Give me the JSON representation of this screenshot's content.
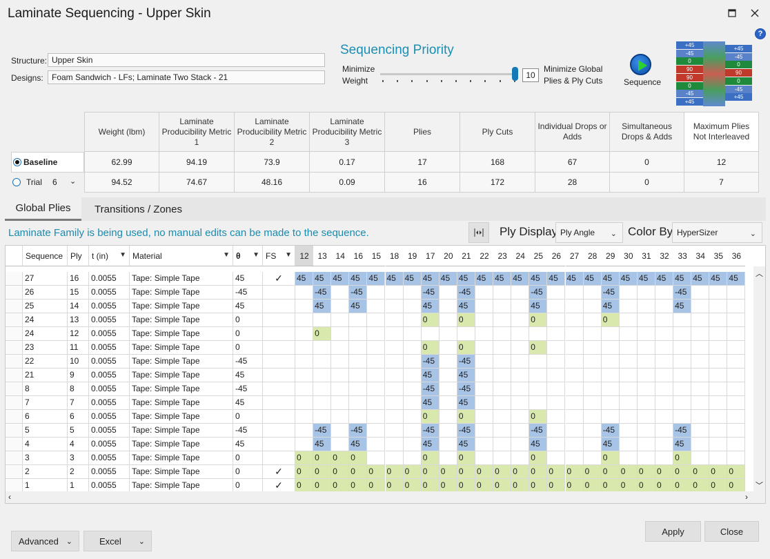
{
  "window": {
    "title": "Laminate Sequencing - Upper Skin"
  },
  "structure_label": "Structure:",
  "structure_value": "Upper Skin",
  "designs_label": "Designs:",
  "designs_value": "Foam Sandwich - LFs; Laminate Two Stack - 21",
  "priority": {
    "title": "Sequencing Priority",
    "left_label_1": "Minimize",
    "left_label_2": "Weight",
    "right_label_1": "Minimize Global",
    "right_label_2": "Plies & Ply Cuts",
    "value": "10",
    "slider_fraction": 1.0
  },
  "sequence_button": "Sequence",
  "stack_icon": {
    "left": [
      "+45",
      "-45",
      "0",
      "90",
      "90",
      "0",
      "-45",
      "+45"
    ],
    "right": [
      "+45",
      "-45",
      "0",
      "90",
      "0",
      "-45",
      "+45"
    ],
    "colors": {
      "+45": "#3b6fc4",
      "-45": "#5a82c8",
      "0": "#1f8a3c",
      "90": "#c0392b"
    }
  },
  "metrics": {
    "headers": [
      "Weight (lbm)",
      "Laminate Producibility Metric 1",
      "Laminate Producibility Metric 2",
      "Laminate Producibility Metric 3",
      "Plies",
      "Ply Cuts",
      "Individual Drops or Adds",
      "Simultaneous Drops & Adds",
      "Maximum Plies Not Interleaved"
    ],
    "baseline_label": "Baseline",
    "trial_label": "Trial",
    "trial_value": "6",
    "baseline": [
      "62.99",
      "94.19",
      "73.9",
      "0.17",
      "17",
      "168",
      "67",
      "0",
      "12"
    ],
    "trial": [
      "94.52",
      "74.67",
      "48.16",
      "0.09",
      "16",
      "172",
      "28",
      "0",
      "7"
    ]
  },
  "tabs": [
    "Global Plies",
    "Transitions / Zones"
  ],
  "info_text": "Laminate Family is being used, no manual edits can be made to the sequence.",
  "ply_display_label": "Ply Display",
  "ply_display_value": "Ply Angle",
  "color_by_label": "Color By",
  "color_by_value": "HyperSizer",
  "grid": {
    "columns": [
      "Sequence",
      "Ply",
      "t (in)",
      "Material",
      "θ",
      "FS"
    ],
    "zones": [
      "12",
      "13",
      "14",
      "16",
      "15",
      "18",
      "19",
      "17",
      "20",
      "21",
      "22",
      "23",
      "24",
      "25",
      "26",
      "27",
      "28",
      "29",
      "30",
      "31",
      "32",
      "33",
      "34",
      "35",
      "36"
    ],
    "colors": {
      "blue": "#a7c3e6",
      "green": "#d9e9ad"
    },
    "rows": [
      {
        "seq": "27",
        "ply": "16",
        "t": "0.0055",
        "mat": "Tape: Simple Tape",
        "theta": "45",
        "fs": "✓",
        "cells": [
          "45",
          "45",
          "45",
          "45",
          "45",
          "45",
          "45",
          "45",
          "45",
          "45",
          "45",
          "45",
          "45",
          "45",
          "45",
          "45",
          "45",
          "45",
          "45",
          "45",
          "45",
          "45",
          "45",
          "45",
          "45"
        ]
      },
      {
        "seq": "26",
        "ply": "15",
        "t": "0.0055",
        "mat": "Tape: Simple Tape",
        "theta": "-45",
        "fs": "",
        "cells": [
          "",
          "-45",
          "",
          "-45",
          "",
          "",
          "",
          "-45",
          "",
          "-45",
          "",
          "",
          "",
          "-45",
          "",
          "",
          "",
          "-45",
          "",
          "",
          "",
          "-45",
          "",
          "",
          ""
        ]
      },
      {
        "seq": "25",
        "ply": "14",
        "t": "0.0055",
        "mat": "Tape: Simple Tape",
        "theta": "45",
        "fs": "",
        "cells": [
          "",
          "45",
          "",
          "45",
          "",
          "",
          "",
          "45",
          "",
          "45",
          "",
          "",
          "",
          "45",
          "",
          "",
          "",
          "45",
          "",
          "",
          "",
          "45",
          "",
          "",
          ""
        ]
      },
      {
        "seq": "24",
        "ply": "13",
        "t": "0.0055",
        "mat": "Tape: Simple Tape",
        "theta": "0",
        "fs": "",
        "cells": [
          "",
          "",
          "",
          "",
          "",
          "",
          "",
          "0",
          "",
          "0",
          "",
          "",
          "",
          "0",
          "",
          "",
          "",
          "0",
          "",
          "",
          "",
          "",
          "",
          "",
          ""
        ]
      },
      {
        "seq": "24",
        "ply": "12",
        "t": "0.0055",
        "mat": "Tape: Simple Tape",
        "theta": "0",
        "fs": "",
        "cells": [
          "",
          "0",
          "",
          "",
          "",
          "",
          "",
          "",
          "",
          "",
          "",
          "",
          "",
          "",
          "",
          "",
          "",
          "",
          "",
          "",
          "",
          "",
          "",
          "",
          ""
        ]
      },
      {
        "seq": "23",
        "ply": "11",
        "t": "0.0055",
        "mat": "Tape: Simple Tape",
        "theta": "0",
        "fs": "",
        "cells": [
          "",
          "",
          "",
          "",
          "",
          "",
          "",
          "0",
          "",
          "0",
          "",
          "",
          "",
          "0",
          "",
          "",
          "",
          "",
          "",
          "",
          "",
          "",
          "",
          "",
          ""
        ]
      },
      {
        "seq": "22",
        "ply": "10",
        "t": "0.0055",
        "mat": "Tape: Simple Tape",
        "theta": "-45",
        "fs": "",
        "cells": [
          "",
          "",
          "",
          "",
          "",
          "",
          "",
          "-45",
          "",
          "-45",
          "",
          "",
          "",
          "",
          "",
          "",
          "",
          "",
          "",
          "",
          "",
          "",
          "",
          "",
          ""
        ]
      },
      {
        "seq": "21",
        "ply": "9",
        "t": "0.0055",
        "mat": "Tape: Simple Tape",
        "theta": "45",
        "fs": "",
        "cells": [
          "",
          "",
          "",
          "",
          "",
          "",
          "",
          "45",
          "",
          "45",
          "",
          "",
          "",
          "",
          "",
          "",
          "",
          "",
          "",
          "",
          "",
          "",
          "",
          "",
          ""
        ]
      },
      {
        "seq": "8",
        "ply": "8",
        "t": "0.0055",
        "mat": "Tape: Simple Tape",
        "theta": "-45",
        "fs": "",
        "cells": [
          "",
          "",
          "",
          "",
          "",
          "",
          "",
          "-45",
          "",
          "-45",
          "",
          "",
          "",
          "",
          "",
          "",
          "",
          "",
          "",
          "",
          "",
          "",
          "",
          "",
          ""
        ]
      },
      {
        "seq": "7",
        "ply": "7",
        "t": "0.0055",
        "mat": "Tape: Simple Tape",
        "theta": "45",
        "fs": "",
        "cells": [
          "",
          "",
          "",
          "",
          "",
          "",
          "",
          "45",
          "",
          "45",
          "",
          "",
          "",
          "",
          "",
          "",
          "",
          "",
          "",
          "",
          "",
          "",
          "",
          "",
          ""
        ]
      },
      {
        "seq": "6",
        "ply": "6",
        "t": "0.0055",
        "mat": "Tape: Simple Tape",
        "theta": "0",
        "fs": "",
        "cells": [
          "",
          "",
          "",
          "",
          "",
          "",
          "",
          "0",
          "",
          "0",
          "",
          "",
          "",
          "0",
          "",
          "",
          "",
          "",
          "",
          "",
          "",
          "",
          "",
          "",
          ""
        ]
      },
      {
        "seq": "5",
        "ply": "5",
        "t": "0.0055",
        "mat": "Tape: Simple Tape",
        "theta": "-45",
        "fs": "",
        "cells": [
          "",
          "-45",
          "",
          "-45",
          "",
          "",
          "",
          "-45",
          "",
          "-45",
          "",
          "",
          "",
          "-45",
          "",
          "",
          "",
          "-45",
          "",
          "",
          "",
          "-45",
          "",
          "",
          ""
        ]
      },
      {
        "seq": "4",
        "ply": "4",
        "t": "0.0055",
        "mat": "Tape: Simple Tape",
        "theta": "45",
        "fs": "",
        "cells": [
          "",
          "45",
          "",
          "45",
          "",
          "",
          "",
          "45",
          "",
          "45",
          "",
          "",
          "",
          "45",
          "",
          "",
          "",
          "45",
          "",
          "",
          "",
          "45",
          "",
          "",
          ""
        ]
      },
      {
        "seq": "3",
        "ply": "3",
        "t": "0.0055",
        "mat": "Tape: Simple Tape",
        "theta": "0",
        "fs": "",
        "cells": [
          "0",
          "0",
          "0",
          "0",
          "",
          "",
          "",
          "0",
          "",
          "0",
          "",
          "",
          "",
          "0",
          "",
          "",
          "",
          "0",
          "",
          "",
          "",
          "0",
          "",
          "",
          ""
        ]
      },
      {
        "seq": "2",
        "ply": "2",
        "t": "0.0055",
        "mat": "Tape: Simple Tape",
        "theta": "0",
        "fs": "✓",
        "cells": [
          "0",
          "0",
          "0",
          "0",
          "0",
          "0",
          "0",
          "0",
          "0",
          "0",
          "0",
          "0",
          "0",
          "0",
          "0",
          "0",
          "0",
          "0",
          "0",
          "0",
          "0",
          "0",
          "0",
          "0",
          "0"
        ]
      },
      {
        "seq": "1",
        "ply": "1",
        "t": "0.0055",
        "mat": "Tape: Simple Tape",
        "theta": "0",
        "fs": "✓",
        "cells": [
          "0",
          "0",
          "0",
          "0",
          "0",
          "0",
          "0",
          "0",
          "0",
          "0",
          "0",
          "0",
          "0",
          "0",
          "0",
          "0",
          "0",
          "0",
          "0",
          "0",
          "0",
          "0",
          "0",
          "0",
          "0"
        ]
      }
    ]
  },
  "buttons": {
    "advanced": "Advanced",
    "excel": "Excel",
    "apply": "Apply",
    "close": "Close"
  }
}
